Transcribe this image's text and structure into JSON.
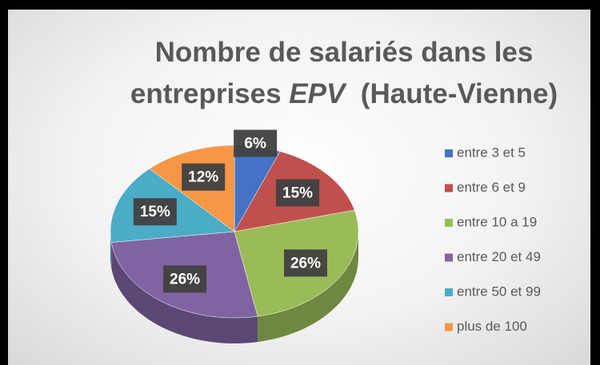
{
  "chart_data": {
    "type": "pie",
    "title": [
      [
        {
          "text": "Nombre de salariés dans les"
        }
      ],
      [
        {
          "text": "entreprises "
        },
        {
          "text": "EPV",
          "italic": true
        },
        {
          "text": "  (Haute-Vienne)"
        }
      ]
    ],
    "categories": [
      "entre 3 et 5",
      "entre 6 et 9",
      "entre 10 a 19",
      "entre 20 et 49",
      "entre 50 et 99",
      "plus de 100"
    ],
    "values": [
      6,
      15,
      26,
      26,
      15,
      12
    ],
    "value_labels": [
      "6%",
      "15%",
      "26%",
      "26%",
      "15%",
      "12%"
    ],
    "colors": [
      "#4472c4",
      "#c0504d",
      "#9bbb59",
      "#8064a2",
      "#4bacc6",
      "#f79646"
    ],
    "legend": "right"
  }
}
